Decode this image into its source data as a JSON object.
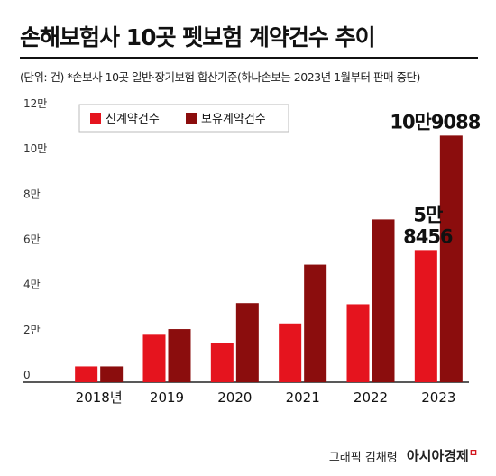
{
  "title": "손해보험사 10곳 펫보험 계약건수 추이",
  "subtitle": "(단위: 건)  *손보사 10곳 일반·장기보험 합산기준(하나손보는 2023년 1월부터 판매 중단)",
  "footer": {
    "credit": "그래픽 김채령",
    "brand": "아시아경제"
  },
  "colors": {
    "new": "#e5141e",
    "held": "#8b0d0d",
    "axis": "#222222"
  },
  "chart_data": {
    "type": "bar",
    "categories": [
      "2018년",
      "2019",
      "2020",
      "2021",
      "2022",
      "2023"
    ],
    "series": [
      {
        "name": "신계약건수",
        "values": [
          7000,
          21000,
          17500,
          26000,
          34500,
          58456
        ]
      },
      {
        "name": "보유계약건수",
        "values": [
          7000,
          23500,
          35000,
          52000,
          72000,
          109088
        ]
      }
    ],
    "yticks": [
      0,
      20000,
      40000,
      60000,
      80000,
      100000,
      120000
    ],
    "ytick_labels": [
      "0",
      "2만",
      "4만",
      "6만",
      "8만",
      "10만",
      "12만"
    ],
    "ylim": [
      0,
      120000
    ],
    "legend": "top-left",
    "annotations": [
      {
        "category": "2023",
        "series": "신계약건수",
        "lines": [
          "5만",
          "8456"
        ]
      },
      {
        "category": "2023",
        "series": "보유계약건수",
        "lines": [
          "10만9088"
        ]
      }
    ]
  }
}
